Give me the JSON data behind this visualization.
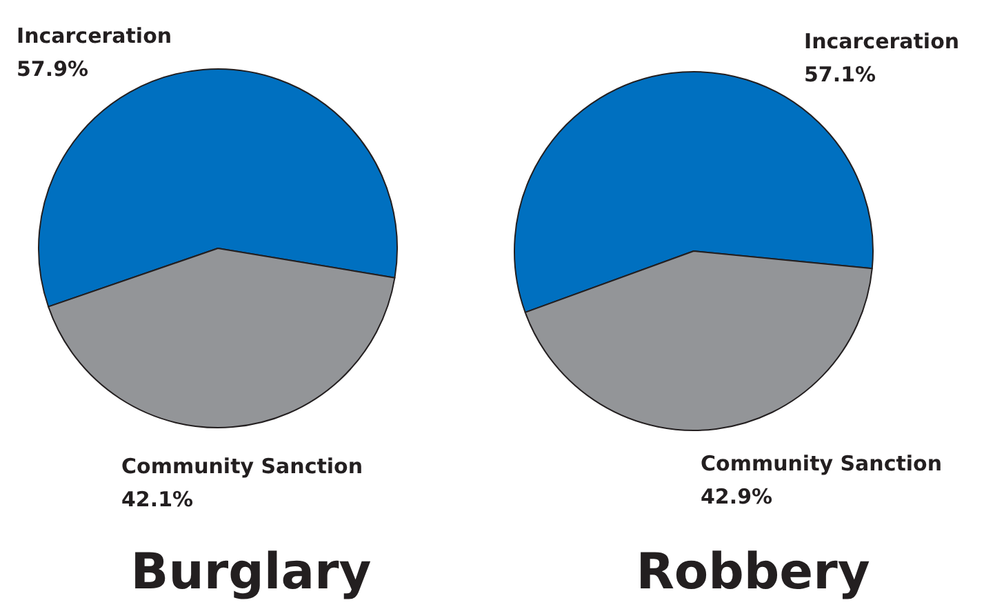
{
  "chart_data": [
    {
      "type": "pie",
      "title": "Burglary",
      "categories": [
        "Incarceration",
        "Community Sanction"
      ],
      "values": [
        57.9,
        42.1
      ],
      "colors": [
        "#0070c0",
        "#939598"
      ],
      "value_labels": [
        "57.9%",
        "42.1%"
      ],
      "legend": false
    },
    {
      "type": "pie",
      "title": "Robbery",
      "categories": [
        "Incarceration",
        "Community Sanction"
      ],
      "values": [
        57.1,
        42.9
      ],
      "colors": [
        "#0070c0",
        "#939598"
      ],
      "value_labels": [
        "57.1%",
        "42.9%"
      ],
      "legend": false
    }
  ]
}
